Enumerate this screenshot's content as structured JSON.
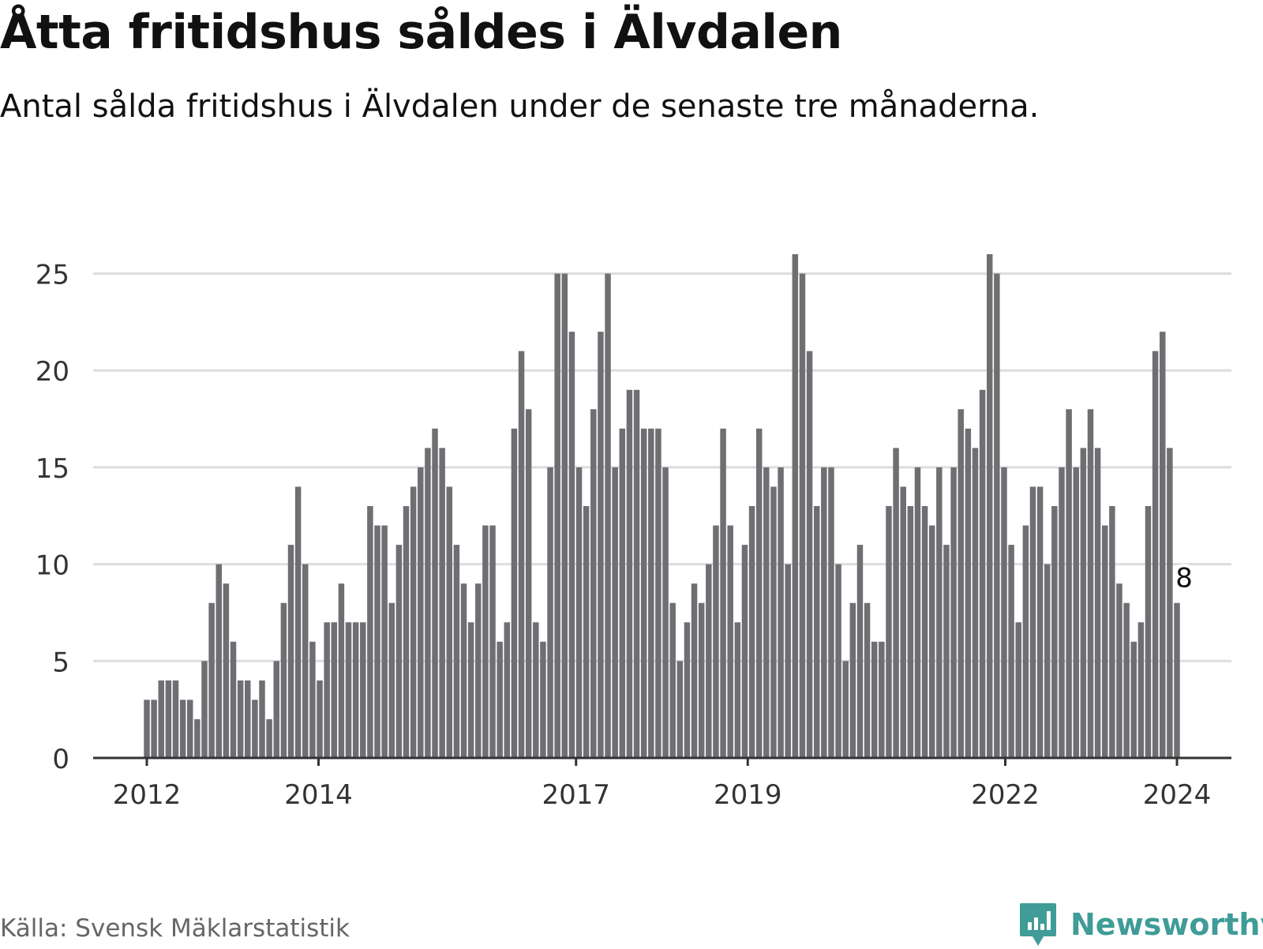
{
  "title": "Åtta fritidshus såldes i Älvdalen",
  "subtitle": "Antal sålda fritidshus i Älvdalen under de senaste tre månaderna.",
  "source": "Källa: Svensk Mäklarstatistik",
  "brand": {
    "name": "Newsworthy",
    "icon": "newsworthy-logo-icon"
  },
  "colors": {
    "bar": "#6e6e73",
    "highlight": "#1aa39a",
    "grid": "#dddddd",
    "axis": "#333333",
    "brand": "#3f9c97"
  },
  "chart_data": {
    "type": "bar",
    "title": "Åtta fritidshus såldes i Älvdalen",
    "xlabel": "",
    "ylabel": "",
    "ylim": [
      0,
      26
    ],
    "yticks": [
      0,
      5,
      10,
      15,
      20,
      25
    ],
    "grid": true,
    "unit": "month",
    "x_range": [
      2012.0,
      2024.0
    ],
    "x_ticks": [
      {
        "label": "2012",
        "value": 2012.0
      },
      {
        "label": "2014",
        "value": 2014.0
      },
      {
        "label": "2017",
        "value": 2017.0
      },
      {
        "label": "2019",
        "value": 2019.0
      },
      {
        "label": "2022",
        "value": 2022.0
      },
      {
        "label": "2024",
        "value": 2024.0
      }
    ],
    "values": [
      3,
      3,
      4,
      4,
      4,
      3,
      3,
      2,
      5,
      8,
      10,
      9,
      6,
      4,
      4,
      3,
      4,
      2,
      5,
      8,
      11,
      14,
      10,
      6,
      4,
      7,
      7,
      9,
      7,
      7,
      7,
      13,
      12,
      12,
      8,
      11,
      13,
      14,
      15,
      16,
      17,
      16,
      14,
      11,
      9,
      7,
      9,
      12,
      12,
      6,
      7,
      17,
      21,
      18,
      7,
      6,
      15,
      25,
      25,
      22,
      15,
      13,
      18,
      22,
      25,
      15,
      17,
      19,
      19,
      17,
      17,
      17,
      15,
      8,
      5,
      7,
      9,
      8,
      10,
      12,
      17,
      12,
      7,
      11,
      13,
      17,
      15,
      14,
      15,
      10,
      26,
      25,
      21,
      13,
      15,
      15,
      10,
      5,
      8,
      11,
      8,
      6,
      6,
      13,
      16,
      14,
      13,
      15,
      13,
      12,
      15,
      11,
      15,
      18,
      17,
      16,
      19,
      26,
      25,
      15,
      11,
      7,
      12,
      14,
      14,
      10,
      13,
      15,
      18,
      15,
      16,
      18,
      16,
      12,
      13,
      9,
      8,
      6,
      7,
      13,
      21,
      22,
      16,
      8
    ],
    "highlight": {
      "index": 144,
      "label": "8",
      "value": 8
    }
  }
}
